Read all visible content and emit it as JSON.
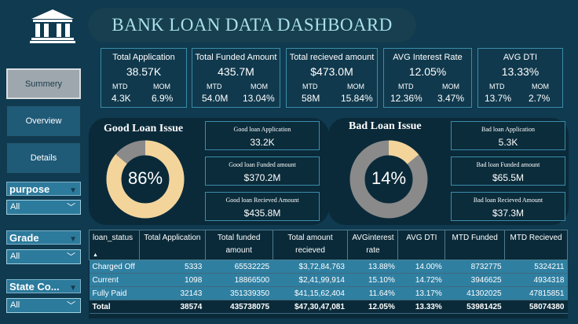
{
  "header": {
    "title": "BANK LOAN DATA DASHBOARD",
    "logo_icon": "bank-icon"
  },
  "nav": [
    {
      "label": "Summery",
      "active": true
    },
    {
      "label": "Overview",
      "active": false
    },
    {
      "label": "Details",
      "active": false
    }
  ],
  "filters": [
    {
      "label": "purpose",
      "value": "All"
    },
    {
      "label": "Grade",
      "value": "All"
    },
    {
      "label": "State Co...",
      "value": "All"
    }
  ],
  "kpis": [
    {
      "title": "Total Application",
      "value": "38.57K",
      "mtd_label": "MTD",
      "mtd": "4.3K",
      "mom_label": "MOM",
      "mom": "6.9%"
    },
    {
      "title": "Total Funded Amount",
      "value": "435.7M",
      "mtd_label": "MTD",
      "mtd": "54.0M",
      "mom_label": "MOM",
      "mom": "13.04%"
    },
    {
      "title": "Total recieved amount",
      "value": "$473.0M",
      "mtd_label": "MTD",
      "mtd": "58M",
      "mom_label": "MOM",
      "mom": "15.84%"
    },
    {
      "title": "AVG Interest Rate",
      "value": "12.05%",
      "mtd_label": "MTD",
      "mtd": "12.36%",
      "mom_label": "MOM",
      "mom": "3.47%"
    },
    {
      "title": "AVG DTI",
      "value": "13.33%",
      "mtd_label": "MTD",
      "mtd": "13.7%",
      "mom_label": "MOM",
      "mom": "2.7%"
    }
  ],
  "good_loan": {
    "title": "Good Loan Issue",
    "percent_label": "86%",
    "percent": 86,
    "fill_color": "#f3d59c",
    "rest_color": "#8a8a8a",
    "cards": [
      {
        "title": "Good loan Application",
        "value": "33.2K"
      },
      {
        "title": "Good loan Funded amount",
        "value": "$370.2M"
      },
      {
        "title": "Good loan Recieved Amount",
        "value": "$435.8M"
      }
    ]
  },
  "bad_loan": {
    "title": "Bad Loan Issue",
    "percent_label": "14%",
    "percent": 14,
    "fill_color": "#f3d59c",
    "rest_color": "#8a8a8a",
    "cards": [
      {
        "title": "Bad loan Application",
        "value": "5.3K"
      },
      {
        "title": "Bad loan Funded amount",
        "value": "$65.5M"
      },
      {
        "title": "Bad loan Recieved Amount",
        "value": "$37.3M"
      }
    ]
  },
  "table": {
    "columns": [
      [
        "loan_status"
      ],
      [
        "Total Application"
      ],
      [
        "Total funded",
        "amount"
      ],
      [
        "Total amount",
        "recieved"
      ],
      [
        "AVGinterest",
        "rate"
      ],
      [
        "AVG DTI"
      ],
      [
        "MTD Funded"
      ],
      [
        "MTD Recieved"
      ]
    ],
    "rows": [
      [
        "Charged Off",
        "5333",
        "65532225",
        "$3,72,84,763",
        "13.88%",
        "14.00%",
        "8732775",
        "5324211"
      ],
      [
        "Current",
        "1098",
        "18866500",
        "$2,41,99,914",
        "15.10%",
        "14.72%",
        "3946625",
        "4934318"
      ],
      [
        "Fully Paid",
        "32143",
        "351339350",
        "$41,15,62,404",
        "11.64%",
        "13.17%",
        "41302025",
        "47815851"
      ]
    ],
    "total": [
      "Total",
      "38574",
      "435738075",
      "$47,30,47,081",
      "12.05%",
      "13.33%",
      "53981425",
      "58074380"
    ]
  }
}
